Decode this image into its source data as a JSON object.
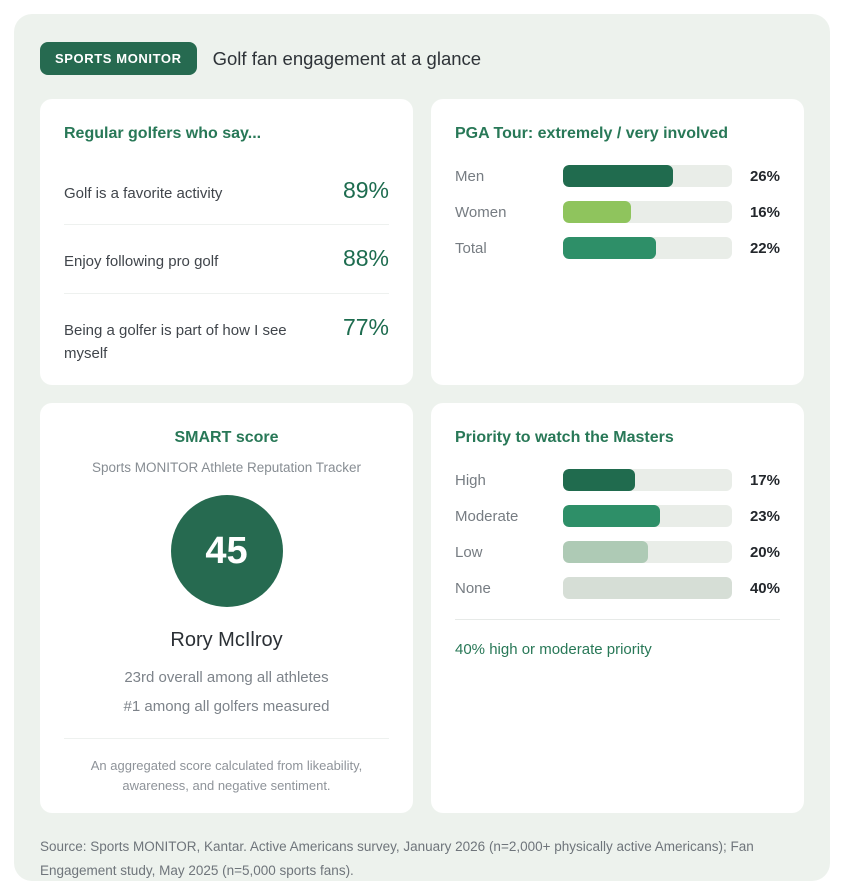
{
  "header": {
    "badge": "SPORTS MONITOR",
    "title": "Golf fan engagement at a glance"
  },
  "colors": {
    "panel_bg": "#edf2ed",
    "brand_green": "#266a50",
    "heading_green": "#287857",
    "stat_value_green": "#1d6c4f",
    "bar_track": "#e9ede8"
  },
  "cards": {
    "regular_golfers": {
      "title": "Regular golfers who say...",
      "stats": [
        {
          "label": "Golf is a favorite activity",
          "value": "89%"
        },
        {
          "label": "Enjoy following pro golf",
          "value": "88%"
        },
        {
          "label": "Being a golfer is part of how I see myself",
          "value": "77%"
        }
      ]
    },
    "smart_score": {
      "title": "SMART score",
      "subtitle": "Sports MONITOR Athlete Reputation Tracker",
      "score": "45",
      "athlete": "Rory McIlroy",
      "rank_overall": "23rd overall among all athletes",
      "rank_golfers": "#1 among all golfers measured",
      "footnote": "An aggregated score calculated from likeability, awareness, and negative sentiment."
    }
  },
  "chart_data": [
    {
      "type": "bar",
      "title": "PGA Tour: extremely / very involved",
      "orientation": "horizontal",
      "categories": [
        "Men",
        "Women",
        "Total"
      ],
      "values": [
        26,
        16,
        22
      ],
      "unit": "%",
      "xlim": [
        0,
        40
      ],
      "grid": false,
      "bar_colors": [
        "#206b4e",
        "#8fc45d",
        "#2e8f68"
      ]
    },
    {
      "type": "bar",
      "title": "Priority to watch the Masters",
      "orientation": "horizontal",
      "categories": [
        "High",
        "Moderate",
        "Low",
        "None"
      ],
      "values": [
        17,
        23,
        20,
        40
      ],
      "unit": "%",
      "xlim": [
        0,
        40
      ],
      "grid": false,
      "bar_colors": [
        "#206b4e",
        "#2e8f68",
        "#aecab5",
        "#d6ded6"
      ],
      "annotation": "40% high or moderate priority"
    }
  ],
  "footer": {
    "source": "Source: Sports MONITOR, Kantar. Active Americans survey, January 2026 (n=2,000+ physically active Americans); Fan Engagement study, May 2025 (n=5,000 sports fans)."
  }
}
